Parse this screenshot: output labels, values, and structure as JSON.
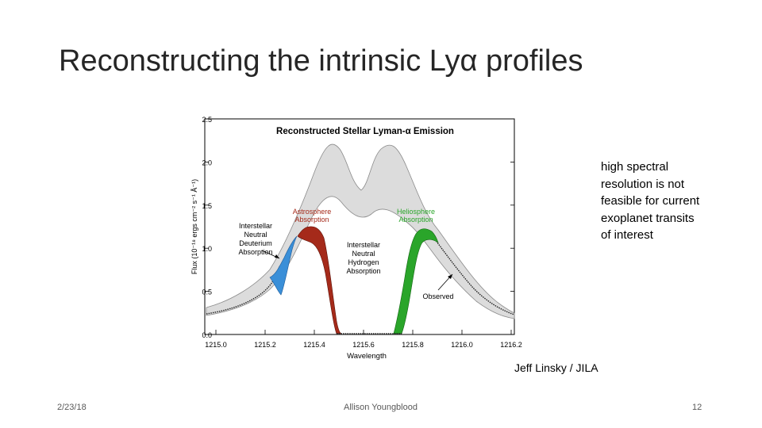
{
  "slide": {
    "title": "Reconstructing the intrinsic Lyα profiles",
    "side_note": "high spectral resolution is not feasible for current exoplanet transits of interest",
    "credit": "Jeff Linsky / JILA",
    "footer_date": "2/23/18",
    "footer_author": "Allison Youngblood",
    "page_number": "12"
  },
  "figure": {
    "title": "Reconstructed Stellar Lyman-α Emission",
    "xlabel": "Wavelength",
    "ylabel": "Flux (10⁻¹⁸ ergs cm⁻² s⁻¹ Å⁻¹)",
    "xticks": [
      "1215.0",
      "1215.2",
      "1215.4",
      "1215.6",
      "1215.8",
      "1216.0",
      "1216.2"
    ],
    "yticks": [
      "0.0",
      "0.5",
      "1.0",
      "1.5",
      "2.0",
      "2.5"
    ],
    "annotations": {
      "deuterium": [
        "Interstellar",
        "Neutral",
        "Deuterium",
        "Absorption"
      ],
      "astrosphere": [
        "Astrosphere",
        "Absorption"
      ],
      "hydrogen": [
        "Interstellar",
        "Neutral",
        "Hydrogen",
        "Absorption"
      ],
      "heliosphere": [
        "Heliosphere",
        "Absorption"
      ],
      "observed": "Observed"
    },
    "colors": {
      "intrinsic_fill": "#dcdcdc",
      "deuterium": "#3a8fd8",
      "astrosphere": "#a52a1a",
      "heliosphere": "#2aa52a",
      "observed": "#222222"
    }
  }
}
